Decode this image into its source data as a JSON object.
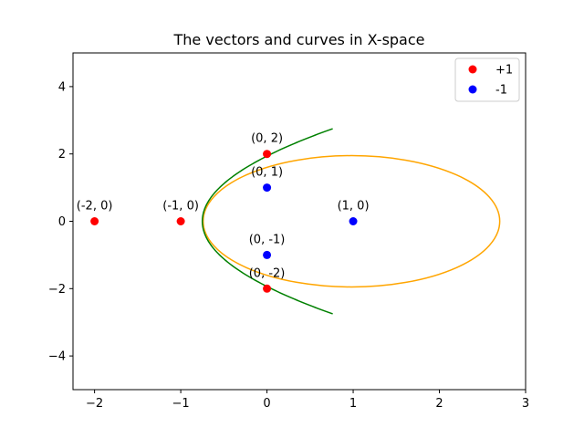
{
  "chart_data": {
    "type": "scatter",
    "title": "The vectors and curves in X-space",
    "xlabel": "",
    "ylabel": "",
    "xlim": [
      -2.25,
      3
    ],
    "ylim": [
      -5,
      5
    ],
    "xticks": [
      -2,
      -1,
      0,
      1,
      2,
      3
    ],
    "yticks": [
      -4,
      -2,
      0,
      2,
      4
    ],
    "xtick_labels": [
      "−2",
      "−1",
      "0",
      "1",
      "2",
      "3"
    ],
    "ytick_labels": [
      "−4",
      "−2",
      "0",
      "2",
      "4"
    ],
    "grid": false,
    "legend_position": "top-right",
    "series": [
      {
        "name": "+1",
        "color": "#ff0000",
        "points": [
          {
            "x": 0,
            "y": 2,
            "label": "(0, 2)"
          },
          {
            "x": -2,
            "y": 0,
            "label": "(-2, 0)"
          },
          {
            "x": -1,
            "y": 0,
            "label": "(-1, 0)"
          },
          {
            "x": 0,
            "y": -2,
            "label": "(0, -2)"
          }
        ]
      },
      {
        "name": "-1",
        "color": "#0000ff",
        "points": [
          {
            "x": 0,
            "y": 1,
            "label": "(0, 1)"
          },
          {
            "x": 1,
            "y": 0,
            "label": "(1, 0)"
          },
          {
            "x": 0,
            "y": -1,
            "label": "(0, -1)"
          }
        ]
      }
    ],
    "curves": [
      {
        "shape": "ellipse",
        "color": "#ffa500",
        "center": [
          0.98,
          0
        ],
        "rx": 1.72,
        "ry": 1.95
      },
      {
        "shape": "parabola",
        "color": "#008000",
        "vertex_x": -0.75,
        "coeff": 0.2,
        "y_range": [
          -2.75,
          2.75
        ]
      }
    ]
  }
}
